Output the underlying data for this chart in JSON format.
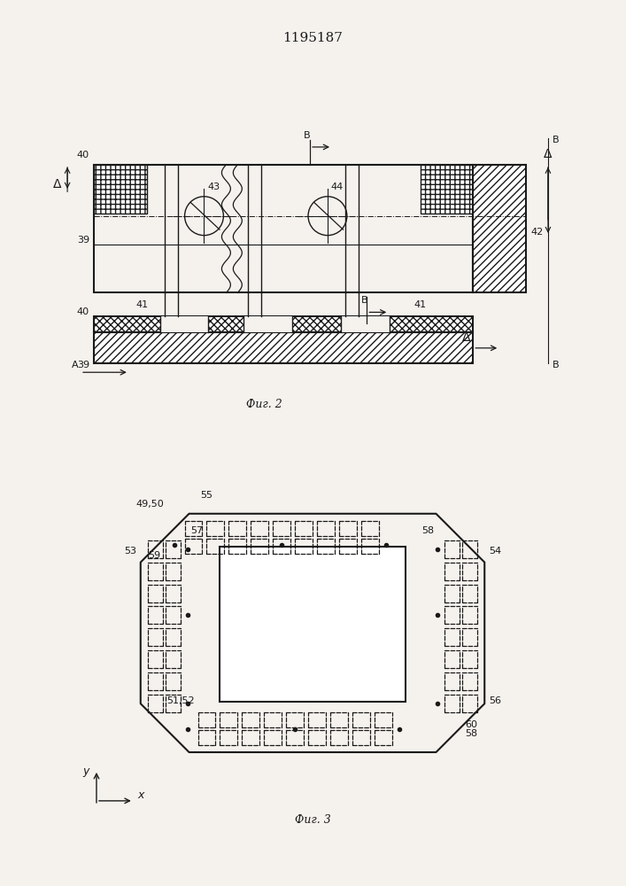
{
  "title": "1195187",
  "bg_color": "#f5f2ee",
  "line_color": "#1a1a1a",
  "fig2_label": "Фиг. 2",
  "fig3_label": "Фиг. 3"
}
